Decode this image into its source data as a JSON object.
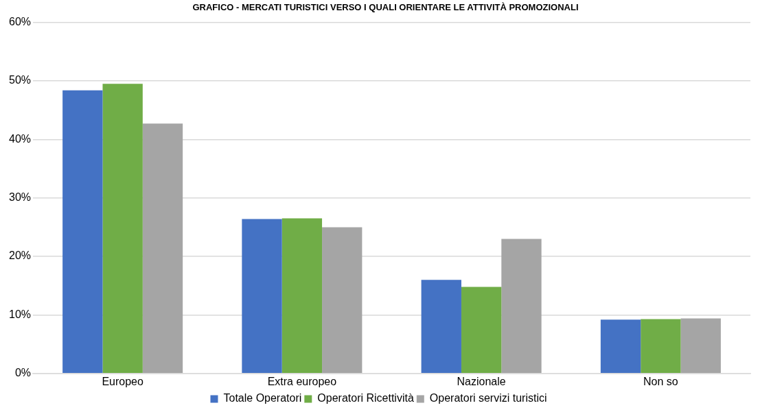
{
  "chart_data": {
    "type": "bar",
    "title": "GRAFICO - MERCATI TURISTICI VERSO I QUALI ORIENTARE LE ATTIVITÀ PROMOZIONALI",
    "categories": [
      "Europeo",
      "Extra europeo",
      "Nazionale",
      "Non so"
    ],
    "series": [
      {
        "name": "Totale Operatori",
        "color": "#4472c4",
        "values": [
          48.4,
          26.4,
          16.0,
          9.2
        ]
      },
      {
        "name": "Operatori Ricettività",
        "color": "#70ad47",
        "values": [
          49.5,
          26.5,
          14.8,
          9.3
        ]
      },
      {
        "name": "Operatori servizi turistici",
        "color": "#a5a5a5",
        "values": [
          42.7,
          25.0,
          23.0,
          9.4
        ]
      }
    ],
    "ylim": [
      0,
      60
    ],
    "yticks": [
      {
        "value": 0,
        "label": "0%"
      },
      {
        "value": 10,
        "label": "10%"
      },
      {
        "value": 20,
        "label": "20%"
      },
      {
        "value": 30,
        "label": "30%"
      },
      {
        "value": 40,
        "label": "40%"
      },
      {
        "value": 50,
        "label": "50%"
      },
      {
        "value": 60,
        "label": "60%"
      }
    ],
    "grid": "y",
    "legend": "bottom"
  }
}
